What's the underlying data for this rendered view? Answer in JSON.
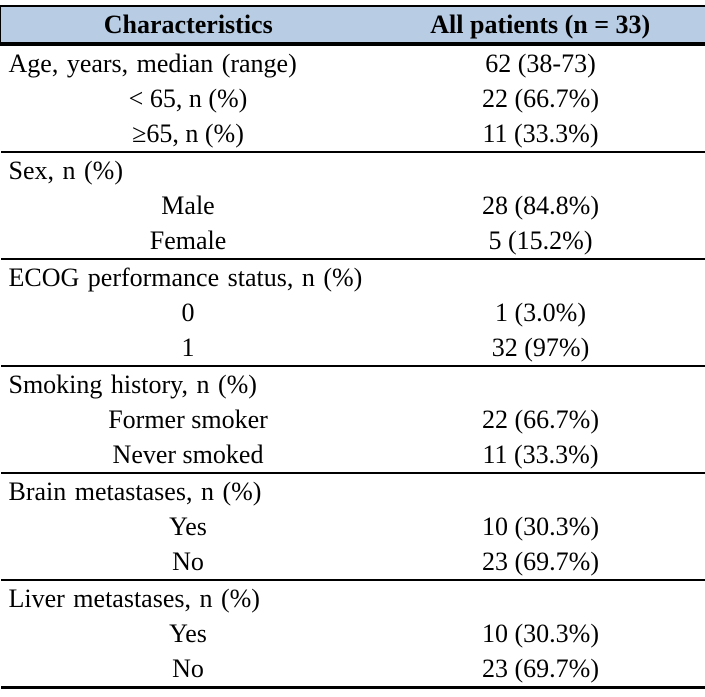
{
  "table": {
    "header_bg": "#b8cce4",
    "columns": [
      "Characteristics",
      "All patients (n = 33)"
    ],
    "rows": [
      {
        "label": "Age, years, median (range)",
        "value": "62 (38-73)"
      },
      {
        "label": "< 65, n (%)",
        "value": "22 (66.7%)"
      },
      {
        "label": "≥65, n (%)",
        "value": "11 (33.3%)"
      },
      {
        "label": "Sex, n (%)",
        "value": ""
      },
      {
        "label": "Male",
        "value": "28 (84.8%)"
      },
      {
        "label": "Female",
        "value": "5 (15.2%)"
      },
      {
        "label": "ECOG performance status, n (%)",
        "value": ""
      },
      {
        "label": "0",
        "value": "1 (3.0%)"
      },
      {
        "label": "1",
        "value": "32 (97%)"
      },
      {
        "label": "Smoking history, n (%)",
        "value": ""
      },
      {
        "label": "Former smoker",
        "value": "22 (66.7%)"
      },
      {
        "label": "Never smoked",
        "value": "11 (33.3%)"
      },
      {
        "label": "Brain metastases, n (%)",
        "value": ""
      },
      {
        "label": "Yes",
        "value": "10 (30.3%)"
      },
      {
        "label": "No",
        "value": "23 (69.7%)"
      },
      {
        "label": "Liver metastases, n (%)",
        "value": ""
      },
      {
        "label": "Yes",
        "value": "10 (30.3%)"
      },
      {
        "label": "No",
        "value": "23 (69.7%)"
      }
    ]
  }
}
